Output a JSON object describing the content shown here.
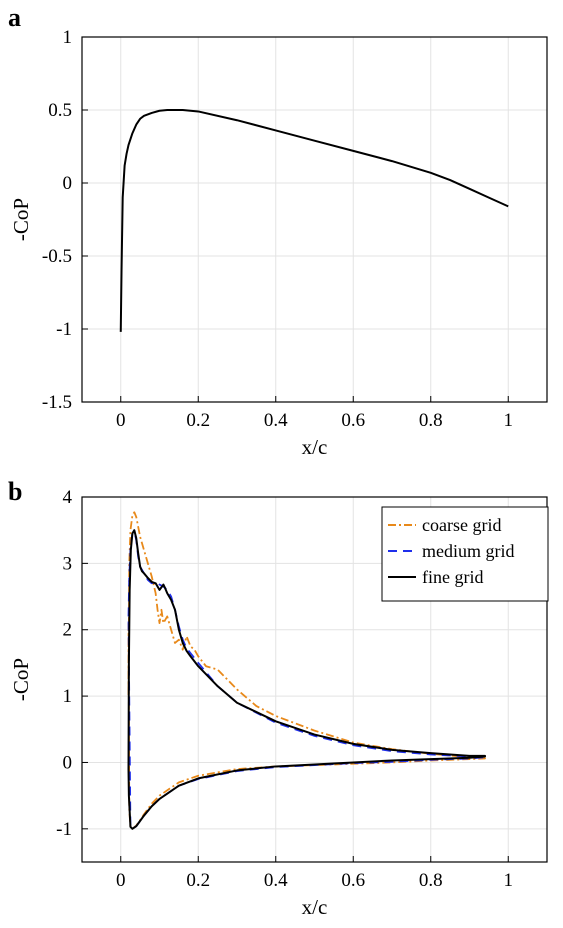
{
  "chart_data": [
    {
      "panel": "a",
      "type": "line",
      "title": "",
      "xlabel": "x/c",
      "ylabel": "-CoP",
      "xlim": [
        -0.1,
        1.1
      ],
      "ylim": [
        -1.5,
        1
      ],
      "xticks": [
        0,
        0.2,
        0.4,
        0.6,
        0.8,
        1
      ],
      "xtick_labels": [
        "0",
        "0.2",
        "0.4",
        "0.6",
        "0.8",
        "1"
      ],
      "yticks": [
        -1.5,
        -1,
        -0.5,
        0,
        0.5,
        1
      ],
      "ytick_labels": [
        "-1.5",
        "-1",
        "-0.5",
        "0",
        "0.5",
        "1"
      ],
      "grid": true,
      "legend": null,
      "series": [
        {
          "color": "#000000",
          "dash": "solid",
          "x": [
            0,
            0.002,
            0.005,
            0.01,
            0.015,
            0.02,
            0.03,
            0.04,
            0.05,
            0.06,
            0.08,
            0.1,
            0.12,
            0.14,
            0.16,
            0.2,
            0.3,
            0.4,
            0.5,
            0.6,
            0.7,
            0.8,
            0.85,
            0.9,
            0.95,
            1.0
          ],
          "y": [
            -1.02,
            -0.6,
            -0.1,
            0.12,
            0.2,
            0.26,
            0.34,
            0.4,
            0.44,
            0.46,
            0.48,
            0.495,
            0.5,
            0.5,
            0.5,
            0.49,
            0.43,
            0.36,
            0.29,
            0.22,
            0.15,
            0.07,
            0.02,
            -0.04,
            -0.1,
            -0.16
          ]
        }
      ]
    },
    {
      "panel": "b",
      "type": "line",
      "title": "",
      "xlabel": "x/c",
      "ylabel": "-CoP",
      "xlim": [
        -0.1,
        1.1
      ],
      "ylim": [
        -1.5,
        4
      ],
      "xticks": [
        0,
        0.2,
        0.4,
        0.6,
        0.8,
        1
      ],
      "xtick_labels": [
        "0",
        "0.2",
        "0.4",
        "0.6",
        "0.8",
        "1"
      ],
      "yticks": [
        -1,
        0,
        1,
        2,
        3,
        4
      ],
      "ytick_labels": [
        "-1",
        "0",
        "1",
        "2",
        "3",
        "4"
      ],
      "grid": true,
      "legend": "top-right",
      "series": [
        {
          "name": "coarse grid",
          "color": "#E8891A",
          "dash": "dashdot",
          "x": [
            0.02,
            0.02,
            0.022,
            0.025,
            0.03,
            0.035,
            0.04,
            0.045,
            0.05,
            0.06,
            0.07,
            0.08,
            0.09,
            0.095,
            0.1,
            0.105,
            0.11,
            0.12,
            0.13,
            0.14,
            0.15,
            0.16,
            0.17,
            0.18,
            0.19,
            0.2,
            0.22,
            0.25,
            0.3,
            0.35,
            0.4,
            0.5,
            0.6,
            0.7,
            0.8,
            0.9,
            0.94,
            0.94,
            0.9,
            0.8,
            0.7,
            0.6,
            0.5,
            0.4,
            0.3,
            0.2,
            0.15,
            0.1,
            0.08,
            0.06,
            0.05,
            0.04,
            0.03,
            0.025,
            0.022,
            0.02
          ],
          "y": [
            2.1,
            1.0,
            3.0,
            3.5,
            3.72,
            3.77,
            3.7,
            3.55,
            3.4,
            3.2,
            3.0,
            2.8,
            2.55,
            2.3,
            2.1,
            2.3,
            2.1,
            2.2,
            2.0,
            1.8,
            1.85,
            1.7,
            1.9,
            1.75,
            1.7,
            1.6,
            1.45,
            1.4,
            1.1,
            0.85,
            0.7,
            0.48,
            0.3,
            0.2,
            0.13,
            0.08,
            0.06,
            0.06,
            0.05,
            0.03,
            0.0,
            -0.02,
            -0.04,
            -0.06,
            -0.1,
            -0.2,
            -0.3,
            -0.5,
            -0.62,
            -0.78,
            -0.87,
            -0.95,
            -1.0,
            -0.98,
            -0.7,
            2.1
          ]
        },
        {
          "name": "medium grid",
          "color": "#1F2FEB",
          "dash": "dashed",
          "x": [
            0.02,
            0.022,
            0.025,
            0.03,
            0.035,
            0.04,
            0.045,
            0.05,
            0.06,
            0.07,
            0.08,
            0.09,
            0.1,
            0.11,
            0.12,
            0.13,
            0.14,
            0.15,
            0.16,
            0.17,
            0.2,
            0.25,
            0.3,
            0.4,
            0.5,
            0.6,
            0.7,
            0.8,
            0.9,
            0.94,
            0.94,
            0.9,
            0.8,
            0.7,
            0.6,
            0.5,
            0.4,
            0.3,
            0.2,
            0.15,
            0.1,
            0.08,
            0.06,
            0.05,
            0.04,
            0.03,
            0.025,
            0.02
          ],
          "y": [
            2.2,
            2.8,
            3.2,
            3.45,
            3.48,
            3.35,
            3.1,
            2.95,
            2.85,
            2.75,
            2.7,
            2.72,
            2.68,
            2.65,
            2.6,
            2.5,
            2.3,
            2.05,
            1.85,
            1.72,
            1.5,
            1.15,
            0.9,
            0.6,
            0.4,
            0.26,
            0.17,
            0.12,
            0.09,
            0.08,
            0.08,
            0.06,
            0.04,
            0.01,
            -0.01,
            -0.04,
            -0.07,
            -0.13,
            -0.25,
            -0.35,
            -0.55,
            -0.66,
            -0.8,
            -0.88,
            -0.96,
            -1.0,
            -0.97,
            2.2
          ]
        },
        {
          "name": "fine grid",
          "color": "#000000",
          "dash": "solid",
          "x": [
            0.02,
            0.021,
            0.023,
            0.026,
            0.03,
            0.035,
            0.04,
            0.045,
            0.05,
            0.055,
            0.06,
            0.07,
            0.08,
            0.09,
            0.1,
            0.11,
            0.115,
            0.12,
            0.13,
            0.14,
            0.15,
            0.16,
            0.17,
            0.18,
            0.2,
            0.25,
            0.3,
            0.4,
            0.5,
            0.6,
            0.7,
            0.8,
            0.9,
            0.94,
            0.94,
            0.9,
            0.8,
            0.7,
            0.6,
            0.5,
            0.4,
            0.3,
            0.2,
            0.15,
            0.1,
            0.08,
            0.06,
            0.05,
            0.04,
            0.03,
            0.025,
            0.021,
            0.02
          ],
          "y": [
            -0.1,
            1.5,
            2.6,
            3.2,
            3.45,
            3.5,
            3.38,
            3.15,
            2.95,
            2.88,
            2.85,
            2.78,
            2.72,
            2.7,
            2.6,
            2.68,
            2.62,
            2.55,
            2.45,
            2.3,
            2.0,
            1.8,
            1.68,
            1.6,
            1.45,
            1.15,
            0.9,
            0.62,
            0.42,
            0.28,
            0.19,
            0.14,
            0.1,
            0.1,
            0.09,
            0.07,
            0.05,
            0.03,
            0.0,
            -0.03,
            -0.06,
            -0.12,
            -0.24,
            -0.35,
            -0.55,
            -0.66,
            -0.8,
            -0.88,
            -0.96,
            -1.0,
            -0.97,
            -0.5,
            -0.1
          ]
        }
      ]
    }
  ]
}
